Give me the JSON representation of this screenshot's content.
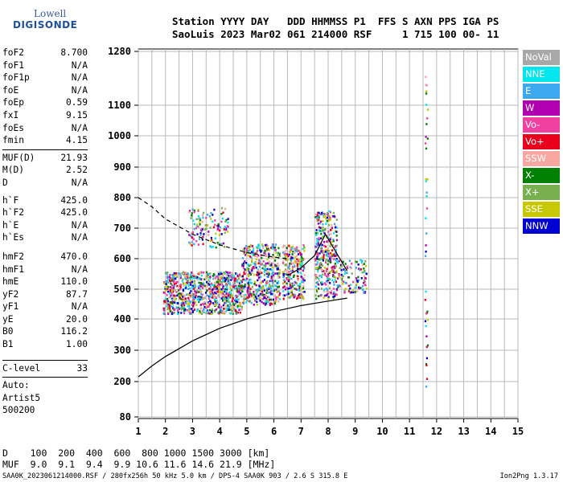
{
  "logo": {
    "top": "Lowell",
    "bottom": "DIGISONDE"
  },
  "header": {
    "line1": "Station YYYY DAY   DDD HHMMSS P1  FFS S AXN PPS IGA PS",
    "line2": "SaoLuis 2023 Mar02 061 214000 RSF     1 715 100 00- 11"
  },
  "params": [
    {
      "name": "foF2",
      "value": "8.700"
    },
    {
      "name": "foF1",
      "value": "N/A"
    },
    {
      "name": "foF1p",
      "value": "N/A"
    },
    {
      "name": "foE",
      "value": "N/A"
    },
    {
      "name": "foEp",
      "value": "0.59"
    },
    {
      "name": "fxI",
      "value": "9.15"
    },
    {
      "name": "foEs",
      "value": "N/A"
    },
    {
      "name": "fmin",
      "value": "4.15"
    }
  ],
  "params2": [
    {
      "name": "MUF(D)",
      "value": "21.93"
    },
    {
      "name": "M(D)",
      "value": "2.52"
    },
    {
      "name": "D",
      "value": "N/A"
    }
  ],
  "params3": [
    {
      "name": "h`F",
      "value": "425.0"
    },
    {
      "name": "h`F2",
      "value": "425.0"
    },
    {
      "name": "h`E",
      "value": "N/A"
    },
    {
      "name": "h`Es",
      "value": "N/A"
    }
  ],
  "params4": [
    {
      "name": "hmF2",
      "value": "470.0"
    },
    {
      "name": "hmF1",
      "value": "N/A"
    },
    {
      "name": "hmE",
      "value": "110.0"
    },
    {
      "name": "yF2",
      "value": "87.7"
    },
    {
      "name": "yF1",
      "value": "N/A"
    },
    {
      "name": "yE",
      "value": "20.0"
    },
    {
      "name": "B0",
      "value": "116.2"
    },
    {
      "name": "B1",
      "value": "1.00"
    }
  ],
  "clevel": {
    "name": "C-level",
    "value": "33"
  },
  "auto": [
    "Auto:",
    "Artist5",
    "500200"
  ],
  "legend": [
    {
      "label": "NoVal",
      "color": "#a8a8a8"
    },
    {
      "label": "NNE",
      "color": "#00e5ee"
    },
    {
      "label": "E",
      "color": "#3ca8f0"
    },
    {
      "label": "W",
      "color": "#b000b0"
    },
    {
      "label": "Vo-",
      "color": "#f040a0"
    },
    {
      "label": "Vo+",
      "color": "#e8001c"
    },
    {
      "label": "SSW",
      "color": "#f8a8a0"
    },
    {
      "label": "X-",
      "color": "#008000"
    },
    {
      "label": "X+",
      "color": "#78b050"
    },
    {
      "label": "SSE",
      "color": "#c8c800"
    },
    {
      "label": "NNW",
      "color": "#0000d0"
    }
  ],
  "footer": {
    "line1": "D    100  200  400  600  800 1000 1500 3000 [km]",
    "line2": "MUF  9.0  9.1  9.4  9.9 10.6 11.6 14.6 21.9 [MHz]"
  },
  "status": {
    "left": "SAA0K_2023061214000.RSF / 280fx256h 50 kHz 5.0 km / DPS-4 SAA0K 903 / 2.6 S 315.8 E",
    "right": "Ion2Png 1.3.17"
  },
  "chart_data": {
    "type": "scatter",
    "x_ticks": [
      "1",
      "2",
      "3",
      "4",
      "5",
      "6",
      "7",
      "8",
      "9",
      "10",
      "11",
      "12",
      "13",
      "14",
      "15"
    ],
    "y_ticks": [
      "80",
      "200",
      "300",
      "400",
      "500",
      "600",
      "700",
      "800",
      "900",
      "1000",
      "1100",
      "1280"
    ],
    "xlim": [
      1,
      15
    ],
    "ylim": [
      80,
      1280
    ],
    "y_scale": "nonlinear (reciprocal-like)",
    "grid": true,
    "clusters": [
      {
        "x": [
          1.9,
          4.8
        ],
        "y": [
          420,
          560
        ],
        "n": 900
      },
      {
        "x": [
          4.8,
          6.2
        ],
        "y": [
          450,
          650
        ],
        "n": 450
      },
      {
        "x": [
          6.3,
          7.1
        ],
        "y": [
          470,
          650
        ],
        "n": 250
      },
      {
        "x": [
          7.5,
          8.3
        ],
        "y": [
          470,
          760
        ],
        "n": 350
      },
      {
        "x": [
          8.3,
          9.4
        ],
        "y": [
          490,
          600
        ],
        "n": 120
      },
      {
        "x": [
          2.8,
          4.3
        ],
        "y": [
          640,
          770
        ],
        "n": 120
      },
      {
        "x": [
          11.55,
          11.65
        ],
        "y": [
          150,
          1280
        ],
        "n": 40
      }
    ],
    "curves": [
      {
        "name": "",
        "style": "solid",
        "x": [
          1.0,
          1.5,
          2.0,
          3.0,
          4.0,
          5.0,
          6.0,
          7.0,
          8.0,
          8.7
        ],
        "y": [
          215,
          250,
          280,
          330,
          370,
          400,
          425,
          445,
          460,
          470
        ]
      },
      {
        "name": "",
        "style": "dashed",
        "x": [
          1.0,
          1.5,
          2.0,
          3.0,
          4.0,
          5.0,
          6.0,
          6.5
        ],
        "y": [
          800,
          770,
          730,
          680,
          645,
          620,
          605,
          600
        ]
      },
      {
        "name": "",
        "style": "solid",
        "x": [
          6.5,
          7.0,
          7.5,
          7.9,
          8.3,
          8.7
        ],
        "y": [
          545,
          570,
          610,
          680,
          620,
          560
        ]
      }
    ]
  }
}
